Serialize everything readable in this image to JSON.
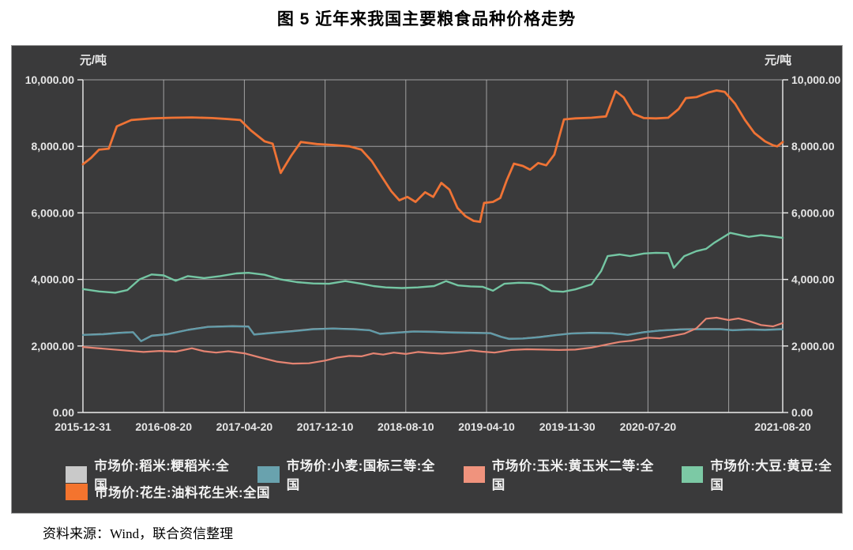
{
  "title": "图 5 近年来我国主要粮食品种价格走势",
  "source_note": "资料来源：Wind，联合资信整理",
  "axes": {
    "left_unit": "元/吨",
    "right_unit": "元/吨"
  },
  "legend": {
    "items": [
      {
        "label": "市场价:稻米:粳稻米:全国",
        "color": "#c9c9c9"
      },
      {
        "label": "市场价:小麦:国标三等:全国",
        "color": "#69a2ae"
      },
      {
        "label": "市场价:玉米:黄玉米二等:全国",
        "color": "#f0937d"
      },
      {
        "label": "市场价:大豆:黄豆:全国",
        "color": "#7cc9a5"
      },
      {
        "label": "市场价:花生:油料花生米:全国",
        "color": "#f4742e"
      }
    ]
  },
  "chart_data": {
    "type": "line",
    "title": "图 5 近年来我国主要粮食品种价格走势",
    "ylabel": "元/吨",
    "ylim": [
      0,
      10000
    ],
    "grid": true,
    "legend_position": "bottom",
    "y_ticks": [
      "0.00",
      "2,000.00",
      "4,000.00",
      "6,000.00",
      "8,000.00",
      "10,000.00"
    ],
    "x_labels": [
      "2015-12-31",
      "2016-08-20",
      "2017-04-20",
      "2017-12-10",
      "2018-08-10",
      "2019-04-10",
      "2019-11-30",
      "2020-07-20",
      "2021-08-20"
    ],
    "x_note": "t is measured in x-gridline units (one unit ≈ 8 months); gridline t=8 is unlabeled (≈2021-03); series end at t=8.67 (2021-08-20, right axis). Values in 元/吨.",
    "series": [
      {
        "id": "rice",
        "name": "市场价:稻米:粳稻米:全国",
        "color": "#c9c9c9",
        "width": 2,
        "note": "nearly coincident with wheat series; hidden behind it in the image",
        "points": [
          [
            0,
            2338
          ],
          [
            0.25,
            2358
          ],
          [
            0.45,
            2398
          ],
          [
            0.62,
            2418
          ],
          [
            0.72,
            2148
          ],
          [
            0.85,
            2308
          ],
          [
            1.05,
            2358
          ],
          [
            1.3,
            2488
          ],
          [
            1.55,
            2578
          ],
          [
            1.85,
            2598
          ],
          [
            2.05,
            2588
          ],
          [
            2.12,
            2348
          ],
          [
            2.35,
            2398
          ],
          [
            2.6,
            2448
          ],
          [
            2.85,
            2508
          ],
          [
            3.1,
            2528
          ],
          [
            3.35,
            2508
          ],
          [
            3.55,
            2478
          ],
          [
            3.68,
            2368
          ],
          [
            3.85,
            2398
          ],
          [
            4.1,
            2438
          ],
          [
            4.35,
            2428
          ],
          [
            4.6,
            2408
          ],
          [
            4.85,
            2398
          ],
          [
            5.05,
            2388
          ],
          [
            5.18,
            2278
          ],
          [
            5.28,
            2218
          ],
          [
            5.45,
            2228
          ],
          [
            5.65,
            2268
          ],
          [
            5.85,
            2328
          ],
          [
            6.05,
            2378
          ],
          [
            6.3,
            2398
          ],
          [
            6.55,
            2388
          ],
          [
            6.75,
            2338
          ],
          [
            6.95,
            2418
          ],
          [
            7.15,
            2468
          ],
          [
            7.4,
            2498
          ],
          [
            7.65,
            2508
          ],
          [
            7.9,
            2508
          ],
          [
            8.05,
            2478
          ],
          [
            8.25,
            2498
          ],
          [
            8.45,
            2488
          ],
          [
            8.67,
            2508
          ]
        ]
      },
      {
        "id": "wheat",
        "name": "市场价:小麦:国标三等:全国",
        "color": "#5f9aa8",
        "width": 2.2,
        "points": [
          [
            0,
            2330
          ],
          [
            0.25,
            2350
          ],
          [
            0.45,
            2390
          ],
          [
            0.62,
            2410
          ],
          [
            0.72,
            2140
          ],
          [
            0.85,
            2300
          ],
          [
            1.05,
            2350
          ],
          [
            1.3,
            2480
          ],
          [
            1.55,
            2570
          ],
          [
            1.85,
            2590
          ],
          [
            2.05,
            2580
          ],
          [
            2.12,
            2340
          ],
          [
            2.35,
            2390
          ],
          [
            2.6,
            2440
          ],
          [
            2.85,
            2500
          ],
          [
            3.1,
            2520
          ],
          [
            3.35,
            2500
          ],
          [
            3.55,
            2470
          ],
          [
            3.68,
            2360
          ],
          [
            3.85,
            2390
          ],
          [
            4.1,
            2430
          ],
          [
            4.35,
            2420
          ],
          [
            4.6,
            2400
          ],
          [
            4.85,
            2390
          ],
          [
            5.05,
            2380
          ],
          [
            5.18,
            2270
          ],
          [
            5.28,
            2210
          ],
          [
            5.45,
            2220
          ],
          [
            5.65,
            2260
          ],
          [
            5.85,
            2320
          ],
          [
            6.05,
            2370
          ],
          [
            6.3,
            2390
          ],
          [
            6.55,
            2380
          ],
          [
            6.75,
            2330
          ],
          [
            6.95,
            2410
          ],
          [
            7.15,
            2460
          ],
          [
            7.4,
            2490
          ],
          [
            7.65,
            2500
          ],
          [
            7.9,
            2500
          ],
          [
            8.05,
            2470
          ],
          [
            8.25,
            2490
          ],
          [
            8.45,
            2480
          ],
          [
            8.67,
            2500
          ]
        ]
      },
      {
        "id": "corn",
        "name": "市场价:玉米:黄玉米二等:全国",
        "color": "#e58472",
        "width": 2.2,
        "points": [
          [
            0,
            1970
          ],
          [
            0.25,
            1920
          ],
          [
            0.5,
            1870
          ],
          [
            0.75,
            1820
          ],
          [
            0.95,
            1850
          ],
          [
            1.15,
            1830
          ],
          [
            1.35,
            1930
          ],
          [
            1.5,
            1840
          ],
          [
            1.65,
            1800
          ],
          [
            1.8,
            1840
          ],
          [
            2.0,
            1780
          ],
          [
            2.2,
            1650
          ],
          [
            2.4,
            1530
          ],
          [
            2.6,
            1470
          ],
          [
            2.8,
            1480
          ],
          [
            3.0,
            1560
          ],
          [
            3.15,
            1650
          ],
          [
            3.3,
            1700
          ],
          [
            3.45,
            1690
          ],
          [
            3.6,
            1780
          ],
          [
            3.72,
            1740
          ],
          [
            3.85,
            1800
          ],
          [
            4.0,
            1760
          ],
          [
            4.15,
            1820
          ],
          [
            4.3,
            1790
          ],
          [
            4.45,
            1770
          ],
          [
            4.6,
            1800
          ],
          [
            4.8,
            1870
          ],
          [
            4.95,
            1830
          ],
          [
            5.1,
            1800
          ],
          [
            5.3,
            1880
          ],
          [
            5.5,
            1900
          ],
          [
            5.7,
            1890
          ],
          [
            5.9,
            1880
          ],
          [
            6.1,
            1890
          ],
          [
            6.3,
            1950
          ],
          [
            6.5,
            2050
          ],
          [
            6.65,
            2120
          ],
          [
            6.8,
            2160
          ],
          [
            7.0,
            2250
          ],
          [
            7.15,
            2230
          ],
          [
            7.3,
            2300
          ],
          [
            7.45,
            2370
          ],
          [
            7.6,
            2530
          ],
          [
            7.72,
            2820
          ],
          [
            7.85,
            2850
          ],
          [
            8.0,
            2780
          ],
          [
            8.12,
            2830
          ],
          [
            8.25,
            2750
          ],
          [
            8.4,
            2630
          ],
          [
            8.55,
            2590
          ],
          [
            8.67,
            2690
          ]
        ]
      },
      {
        "id": "soybean",
        "name": "市场价:大豆:黄豆:全国",
        "color": "#74c6a3",
        "width": 2.4,
        "points": [
          [
            0,
            3710
          ],
          [
            0.2,
            3640
          ],
          [
            0.4,
            3600
          ],
          [
            0.55,
            3680
          ],
          [
            0.7,
            4000
          ],
          [
            0.85,
            4150
          ],
          [
            1.0,
            4120
          ],
          [
            1.15,
            3960
          ],
          [
            1.3,
            4100
          ],
          [
            1.5,
            4040
          ],
          [
            1.7,
            4100
          ],
          [
            1.9,
            4180
          ],
          [
            2.05,
            4200
          ],
          [
            2.25,
            4140
          ],
          [
            2.45,
            4000
          ],
          [
            2.65,
            3920
          ],
          [
            2.85,
            3880
          ],
          [
            3.05,
            3870
          ],
          [
            3.25,
            3950
          ],
          [
            3.45,
            3870
          ],
          [
            3.6,
            3800
          ],
          [
            3.75,
            3760
          ],
          [
            3.95,
            3740
          ],
          [
            4.15,
            3760
          ],
          [
            4.35,
            3800
          ],
          [
            4.5,
            3950
          ],
          [
            4.65,
            3820
          ],
          [
            4.8,
            3790
          ],
          [
            4.95,
            3780
          ],
          [
            5.08,
            3660
          ],
          [
            5.22,
            3870
          ],
          [
            5.4,
            3900
          ],
          [
            5.55,
            3890
          ],
          [
            5.68,
            3830
          ],
          [
            5.8,
            3650
          ],
          [
            5.95,
            3630
          ],
          [
            6.1,
            3700
          ],
          [
            6.3,
            3850
          ],
          [
            6.42,
            4250
          ],
          [
            6.5,
            4700
          ],
          [
            6.65,
            4750
          ],
          [
            6.78,
            4700
          ],
          [
            6.95,
            4780
          ],
          [
            7.1,
            4800
          ],
          [
            7.25,
            4790
          ],
          [
            7.32,
            4350
          ],
          [
            7.45,
            4700
          ],
          [
            7.6,
            4850
          ],
          [
            7.72,
            4920
          ],
          [
            7.82,
            5100
          ],
          [
            7.92,
            5250
          ],
          [
            8.02,
            5400
          ],
          [
            8.15,
            5330
          ],
          [
            8.25,
            5280
          ],
          [
            8.4,
            5330
          ],
          [
            8.55,
            5290
          ],
          [
            8.67,
            5250
          ]
        ]
      },
      {
        "id": "peanut",
        "name": "市场价:花生:油料花生米:全国",
        "color": "#ef7335",
        "width": 2.8,
        "points": [
          [
            0,
            7460
          ],
          [
            0.1,
            7650
          ],
          [
            0.2,
            7900
          ],
          [
            0.32,
            7930
          ],
          [
            0.42,
            8600
          ],
          [
            0.6,
            8790
          ],
          [
            0.85,
            8840
          ],
          [
            1.1,
            8860
          ],
          [
            1.35,
            8870
          ],
          [
            1.6,
            8850
          ],
          [
            1.8,
            8820
          ],
          [
            1.95,
            8790
          ],
          [
            2.08,
            8480
          ],
          [
            2.25,
            8150
          ],
          [
            2.35,
            8080
          ],
          [
            2.45,
            7200
          ],
          [
            2.58,
            7720
          ],
          [
            2.7,
            8130
          ],
          [
            2.9,
            8070
          ],
          [
            3.1,
            8040
          ],
          [
            3.3,
            8000
          ],
          [
            3.45,
            7900
          ],
          [
            3.58,
            7550
          ],
          [
            3.7,
            7100
          ],
          [
            3.82,
            6650
          ],
          [
            3.92,
            6380
          ],
          [
            4.02,
            6480
          ],
          [
            4.12,
            6330
          ],
          [
            4.24,
            6620
          ],
          [
            4.34,
            6480
          ],
          [
            4.44,
            6900
          ],
          [
            4.54,
            6700
          ],
          [
            4.64,
            6150
          ],
          [
            4.74,
            5900
          ],
          [
            4.84,
            5760
          ],
          [
            4.92,
            5730
          ],
          [
            4.97,
            6300
          ],
          [
            5.08,
            6330
          ],
          [
            5.17,
            6450
          ],
          [
            5.25,
            6980
          ],
          [
            5.34,
            7480
          ],
          [
            5.45,
            7410
          ],
          [
            5.54,
            7300
          ],
          [
            5.64,
            7500
          ],
          [
            5.74,
            7430
          ],
          [
            5.84,
            7750
          ],
          [
            5.96,
            8810
          ],
          [
            6.1,
            8840
          ],
          [
            6.3,
            8860
          ],
          [
            6.48,
            8900
          ],
          [
            6.6,
            9660
          ],
          [
            6.7,
            9470
          ],
          [
            6.82,
            8980
          ],
          [
            6.95,
            8850
          ],
          [
            7.1,
            8840
          ],
          [
            7.25,
            8860
          ],
          [
            7.38,
            9120
          ],
          [
            7.47,
            9450
          ],
          [
            7.6,
            9480
          ],
          [
            7.75,
            9620
          ],
          [
            7.85,
            9680
          ],
          [
            7.95,
            9640
          ],
          [
            8.08,
            9280
          ],
          [
            8.2,
            8800
          ],
          [
            8.32,
            8400
          ],
          [
            8.45,
            8150
          ],
          [
            8.55,
            8030
          ],
          [
            8.6,
            8000
          ],
          [
            8.67,
            8130
          ]
        ]
      }
    ]
  }
}
